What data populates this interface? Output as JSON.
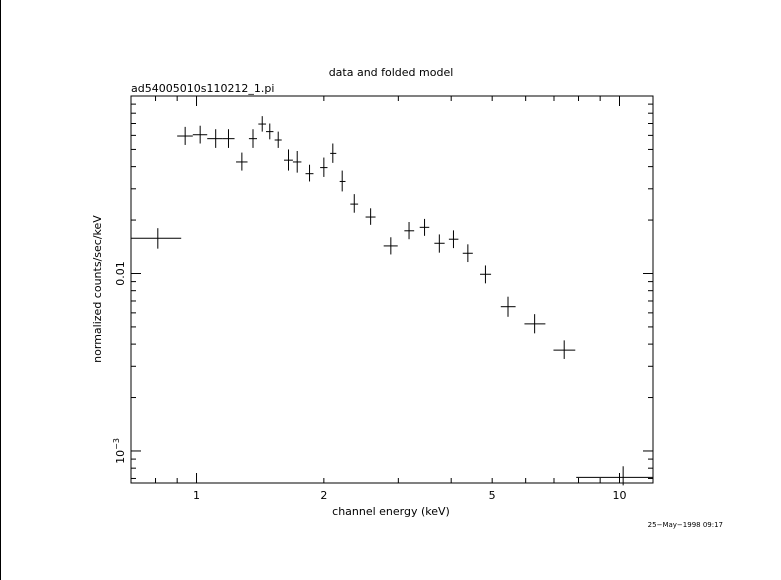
{
  "chart_data": {
    "type": "scatter",
    "title": "data and folded model",
    "subtitle": "ad54005010s110212_1.pi",
    "xlabel": "channel energy (keV)",
    "ylabel": "normalized counts/sec/keV",
    "x_scale": "log",
    "y_scale": "log",
    "xlim": [
      0.7,
      12
    ],
    "ylim": [
      0.00066,
      0.1
    ],
    "x_tick_labels": [
      {
        "value": 1,
        "label": "1"
      },
      {
        "value": 2,
        "label": "2"
      },
      {
        "value": 5,
        "label": "5"
      },
      {
        "value": 10,
        "label": "10"
      }
    ],
    "y_tick_labels": [
      {
        "value": 0.01,
        "label": "0.01"
      },
      {
        "value": 0.001,
        "label": "10",
        "exponent": "−3"
      }
    ],
    "grid": false,
    "points": [
      {
        "x": 0.81,
        "xerr": [
          0.7,
          0.92
        ],
        "y": 0.0158,
        "yerr": [
          0.0138,
          0.018
        ]
      },
      {
        "x": 0.94,
        "xerr": [
          0.9,
          0.98
        ],
        "y": 0.0595,
        "yerr": [
          0.053,
          0.067
        ]
      },
      {
        "x": 1.02,
        "xerr": [
          0.98,
          1.06
        ],
        "y": 0.0605,
        "yerr": [
          0.054,
          0.068
        ]
      },
      {
        "x": 1.11,
        "xerr": [
          1.06,
          1.15
        ],
        "y": 0.0575,
        "yerr": [
          0.051,
          0.065
        ]
      },
      {
        "x": 1.19,
        "xerr": [
          1.15,
          1.23
        ],
        "y": 0.0575,
        "yerr": [
          0.051,
          0.065
        ]
      },
      {
        "x": 1.28,
        "xerr": [
          1.24,
          1.32
        ],
        "y": 0.0425,
        "yerr": [
          0.038,
          0.048
        ]
      },
      {
        "x": 1.36,
        "xerr": [
          1.33,
          1.39
        ],
        "y": 0.0575,
        "yerr": [
          0.051,
          0.065
        ]
      },
      {
        "x": 1.43,
        "xerr": [
          1.4,
          1.46
        ],
        "y": 0.0695,
        "yerr": [
          0.063,
          0.077
        ]
      },
      {
        "x": 1.49,
        "xerr": [
          1.46,
          1.52
        ],
        "y": 0.063,
        "yerr": [
          0.057,
          0.07
        ]
      },
      {
        "x": 1.56,
        "xerr": [
          1.53,
          1.59
        ],
        "y": 0.0565,
        "yerr": [
          0.051,
          0.063
        ]
      },
      {
        "x": 1.65,
        "xerr": [
          1.61,
          1.69
        ],
        "y": 0.0435,
        "yerr": [
          0.038,
          0.05
        ]
      },
      {
        "x": 1.73,
        "xerr": [
          1.69,
          1.77
        ],
        "y": 0.0425,
        "yerr": [
          0.037,
          0.049
        ]
      },
      {
        "x": 1.85,
        "xerr": [
          1.81,
          1.89
        ],
        "y": 0.0365,
        "yerr": [
          0.033,
          0.041
        ]
      },
      {
        "x": 2.0,
        "xerr": [
          1.96,
          2.04
        ],
        "y": 0.0395,
        "yerr": [
          0.035,
          0.045
        ]
      },
      {
        "x": 2.1,
        "xerr": [
          2.07,
          2.14
        ],
        "y": 0.0475,
        "yerr": [
          0.042,
          0.054
        ]
      },
      {
        "x": 2.21,
        "xerr": [
          2.18,
          2.25
        ],
        "y": 0.033,
        "yerr": [
          0.029,
          0.038
        ]
      },
      {
        "x": 2.36,
        "xerr": [
          2.31,
          2.41
        ],
        "y": 0.0246,
        "yerr": [
          0.022,
          0.028
        ]
      },
      {
        "x": 2.58,
        "xerr": [
          2.51,
          2.65
        ],
        "y": 0.0208,
        "yerr": [
          0.0188,
          0.0233
        ]
      },
      {
        "x": 2.88,
        "xerr": [
          2.77,
          2.99
        ],
        "y": 0.0143,
        "yerr": [
          0.0128,
          0.016
        ]
      },
      {
        "x": 3.18,
        "xerr": [
          3.1,
          3.27
        ],
        "y": 0.0174,
        "yerr": [
          0.0156,
          0.0195
        ]
      },
      {
        "x": 3.46,
        "xerr": [
          3.37,
          3.55
        ],
        "y": 0.0182,
        "yerr": [
          0.0163,
          0.0203
        ]
      },
      {
        "x": 3.75,
        "xerr": [
          3.65,
          3.86
        ],
        "y": 0.0148,
        "yerr": [
          0.0131,
          0.0166
        ]
      },
      {
        "x": 4.05,
        "xerr": [
          3.95,
          4.16
        ],
        "y": 0.0156,
        "yerr": [
          0.0139,
          0.0175
        ]
      },
      {
        "x": 4.38,
        "xerr": [
          4.26,
          4.5
        ],
        "y": 0.013,
        "yerr": [
          0.0116,
          0.0146
        ]
      },
      {
        "x": 4.82,
        "xerr": [
          4.68,
          4.97
        ],
        "y": 0.0099,
        "yerr": [
          0.0088,
          0.0111
        ]
      },
      {
        "x": 5.45,
        "xerr": [
          5.24,
          5.68
        ],
        "y": 0.0065,
        "yerr": [
          0.0057,
          0.0074
        ]
      },
      {
        "x": 6.3,
        "xerr": [
          5.96,
          6.68
        ],
        "y": 0.0052,
        "yerr": [
          0.0046,
          0.0059
        ]
      },
      {
        "x": 7.4,
        "xerr": [
          6.98,
          7.86
        ],
        "y": 0.0037,
        "yerr": [
          0.0033,
          0.0042
        ]
      },
      {
        "x": 10.2,
        "xerr": [
          7.9,
          12.0
        ],
        "y": 0.00071,
        "yerr": [
          0.00064,
          0.00082
        ]
      }
    ]
  },
  "timestamp": "25−May−1998 09:17"
}
